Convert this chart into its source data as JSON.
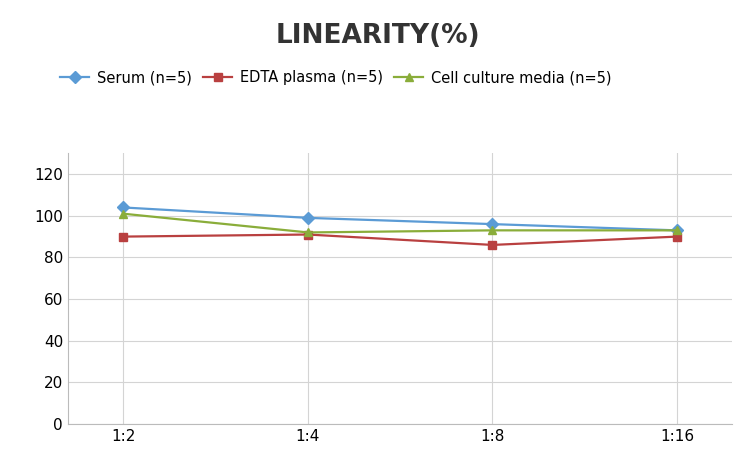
{
  "title": "LINEARITY(%)",
  "title_fontsize": 19,
  "title_fontweight": "bold",
  "x_labels": [
    "1:2",
    "1:4",
    "1:8",
    "1:16"
  ],
  "x_values": [
    0,
    1,
    2,
    3
  ],
  "series": [
    {
      "label": "Serum (n=5)",
      "values": [
        104,
        99,
        96,
        93
      ],
      "color": "#5B9BD5",
      "marker": "D",
      "markersize": 6,
      "linewidth": 1.6
    },
    {
      "label": "EDTA plasma (n=5)",
      "values": [
        90,
        91,
        86,
        90
      ],
      "color": "#B94040",
      "marker": "s",
      "markersize": 6,
      "linewidth": 1.6
    },
    {
      "label": "Cell culture media (n=5)",
      "values": [
        101,
        92,
        93,
        93
      ],
      "color": "#8AAD3A",
      "marker": "^",
      "markersize": 6,
      "linewidth": 1.6
    }
  ],
  "ylim": [
    0,
    130
  ],
  "yticks": [
    0,
    20,
    40,
    60,
    80,
    100,
    120
  ],
  "background_color": "#ffffff",
  "grid_color": "#d4d4d4",
  "legend_fontsize": 10.5,
  "axis_tick_fontsize": 11
}
